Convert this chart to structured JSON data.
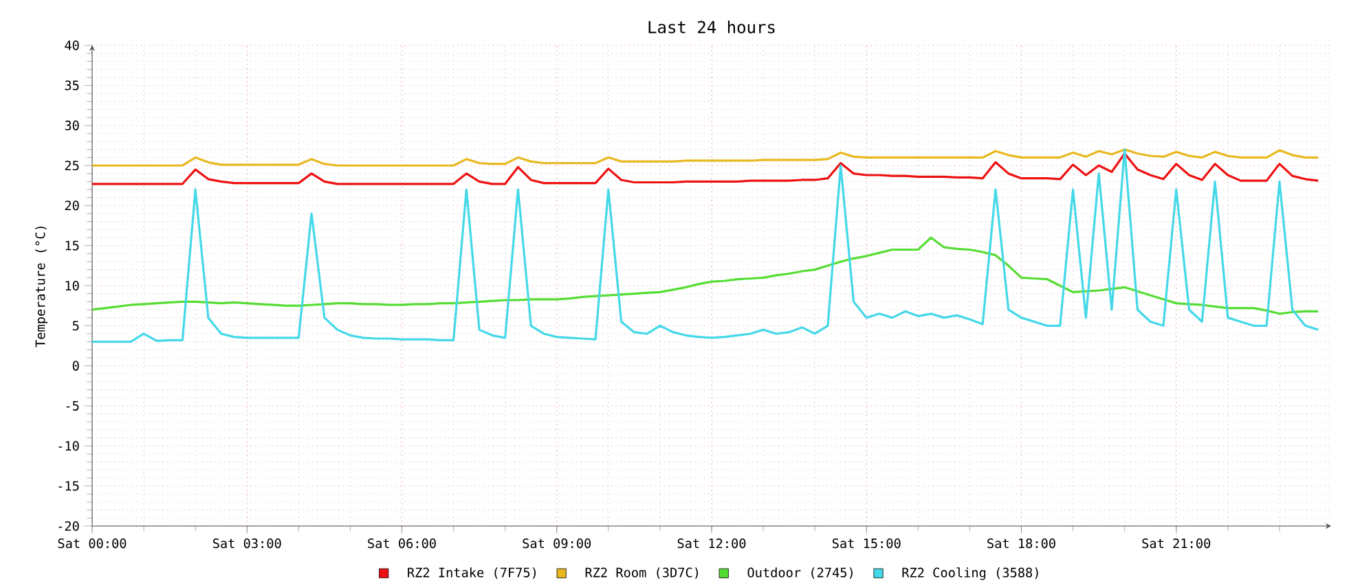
{
  "chart_data": {
    "type": "line",
    "title": "Last 24 hours",
    "ylabel": "Temperature (°C)",
    "categories": [
      "Sat 00:00",
      null,
      null,
      null,
      null,
      null,
      null,
      null,
      null,
      null,
      null,
      null,
      "Sat 03:00",
      null,
      null,
      null,
      null,
      null,
      null,
      null,
      null,
      null,
      null,
      null,
      "Sat 06:00",
      null,
      null,
      null,
      null,
      null,
      null,
      null,
      null,
      null,
      null,
      null,
      "Sat 09:00",
      null,
      null,
      null,
      null,
      null,
      null,
      null,
      null,
      null,
      null,
      null,
      "Sat 12:00",
      null,
      null,
      null,
      null,
      null,
      null,
      null,
      null,
      null,
      null,
      null,
      "Sat 15:00",
      null,
      null,
      null,
      null,
      null,
      null,
      null,
      null,
      null,
      null,
      null,
      "Sat 18:00",
      null,
      null,
      null,
      null,
      null,
      null,
      null,
      null,
      null,
      null,
      null,
      "Sat 21:00",
      null,
      null,
      null,
      null,
      null,
      null,
      null,
      null,
      null,
      null,
      null
    ],
    "ylim": [
      -20,
      40
    ],
    "yticks": [
      -20,
      -15,
      -10,
      -5,
      0,
      5,
      10,
      15,
      20,
      25,
      30,
      35,
      40
    ],
    "grid": true,
    "legend": "bottom",
    "marker": "none",
    "line_style": "solid",
    "series": [
      {
        "name": "RZ2 Intake (7F75)",
        "color": "#ee1111",
        "values": [
          22.7,
          22.7,
          22.7,
          22.7,
          22.7,
          22.7,
          22.7,
          22.7,
          24.5,
          23.3,
          23.0,
          22.8,
          22.8,
          22.8,
          22.8,
          22.8,
          22.8,
          24.0,
          23.0,
          22.7,
          22.7,
          22.7,
          22.7,
          22.7,
          22.7,
          22.7,
          22.7,
          22.7,
          22.7,
          24.0,
          23.0,
          22.7,
          22.7,
          24.8,
          23.2,
          22.8,
          22.8,
          22.8,
          22.8,
          22.8,
          24.6,
          23.2,
          22.9,
          22.9,
          22.9,
          22.9,
          23.0,
          23.0,
          23.0,
          23.0,
          23.0,
          23.1,
          23.1,
          23.1,
          23.1,
          23.2,
          23.2,
          23.4,
          25.3,
          24.0,
          23.8,
          23.8,
          23.7,
          23.7,
          23.6,
          23.6,
          23.6,
          23.5,
          23.5,
          23.4,
          25.4,
          24.0,
          23.4,
          23.4,
          23.4,
          23.3,
          25.1,
          23.8,
          25.0,
          24.2,
          26.5,
          24.5,
          23.8,
          23.3,
          25.2,
          23.8,
          23.2,
          25.2,
          23.8,
          23.1,
          23.1,
          23.1,
          25.2,
          23.7,
          23.3,
          23.1
        ]
      },
      {
        "name": "RZ2 Room (3D7C)",
        "color": "#e8b820",
        "values": [
          25.0,
          25.0,
          25.0,
          25.0,
          25.0,
          25.0,
          25.0,
          25.0,
          26.0,
          25.4,
          25.1,
          25.1,
          25.1,
          25.1,
          25.1,
          25.1,
          25.1,
          25.8,
          25.2,
          25.0,
          25.0,
          25.0,
          25.0,
          25.0,
          25.0,
          25.0,
          25.0,
          25.0,
          25.0,
          25.8,
          25.3,
          25.2,
          25.2,
          26.0,
          25.5,
          25.3,
          25.3,
          25.3,
          25.3,
          25.3,
          26.0,
          25.5,
          25.5,
          25.5,
          25.5,
          25.5,
          25.6,
          25.6,
          25.6,
          25.6,
          25.6,
          25.6,
          25.7,
          25.7,
          25.7,
          25.7,
          25.7,
          25.8,
          26.6,
          26.1,
          26.0,
          26.0,
          26.0,
          26.0,
          26.0,
          26.0,
          26.0,
          26.0,
          26.0,
          26.0,
          26.8,
          26.3,
          26.0,
          26.0,
          26.0,
          26.0,
          26.6,
          26.1,
          26.8,
          26.4,
          27.0,
          26.5,
          26.2,
          26.1,
          26.7,
          26.2,
          26.0,
          26.7,
          26.2,
          26.0,
          26.0,
          26.0,
          26.9,
          26.3,
          26.0,
          26.0
        ]
      },
      {
        "name": "Outdoor (2745)",
        "color": "#55dd33",
        "values": [
          7.0,
          7.2,
          7.4,
          7.6,
          7.7,
          7.8,
          7.9,
          8.0,
          8.0,
          7.9,
          7.8,
          7.9,
          7.8,
          7.7,
          7.6,
          7.5,
          7.5,
          7.6,
          7.7,
          7.8,
          7.8,
          7.7,
          7.7,
          7.6,
          7.6,
          7.7,
          7.7,
          7.8,
          7.8,
          7.9,
          8.0,
          8.1,
          8.2,
          8.2,
          8.3,
          8.3,
          8.3,
          8.4,
          8.6,
          8.7,
          8.8,
          8.9,
          9.0,
          9.1,
          9.2,
          9.5,
          9.8,
          10.2,
          10.5,
          10.6,
          10.8,
          10.9,
          11.0,
          11.3,
          11.5,
          11.8,
          12.0,
          12.5,
          13.0,
          13.4,
          13.7,
          14.1,
          14.5,
          14.5,
          14.5,
          16.0,
          14.8,
          14.6,
          14.5,
          14.2,
          13.8,
          12.5,
          11.0,
          10.9,
          10.8,
          10.0,
          9.2,
          9.3,
          9.4,
          9.6,
          9.8,
          9.3,
          8.8,
          8.3,
          7.8,
          7.7,
          7.6,
          7.4,
          7.2,
          7.2,
          7.2,
          6.9,
          6.5,
          6.7,
          6.8,
          6.8
        ]
      },
      {
        "name": "RZ2 Cooling (3588)",
        "color": "#44d8e8",
        "values": [
          3.0,
          3.0,
          3.0,
          3.0,
          4.0,
          3.1,
          3.2,
          3.2,
          22,
          6,
          4,
          3.6,
          3.5,
          3.5,
          3.5,
          3.5,
          3.5,
          19,
          6,
          4.5,
          3.8,
          3.5,
          3.4,
          3.4,
          3.3,
          3.3,
          3.3,
          3.2,
          3.2,
          22,
          4.5,
          3.8,
          3.5,
          22,
          5,
          4,
          3.6,
          3.5,
          3.4,
          3.3,
          22,
          5.5,
          4.2,
          4.0,
          5.0,
          4.2,
          3.8,
          3.6,
          3.5,
          3.6,
          3.8,
          4.0,
          4.5,
          4.0,
          4.2,
          4.8,
          4.0,
          5.0,
          25,
          8,
          6,
          6.5,
          6.0,
          6.8,
          6.2,
          6.5,
          6.0,
          6.3,
          5.8,
          5.2,
          22,
          7,
          6,
          5.5,
          5.0,
          5.0,
          22,
          6,
          24,
          7,
          27,
          7,
          5.5,
          5.0,
          22,
          7,
          5.5,
          23,
          6,
          5.5,
          5.0,
          5.0,
          23,
          7,
          5,
          4.5
        ]
      }
    ]
  }
}
